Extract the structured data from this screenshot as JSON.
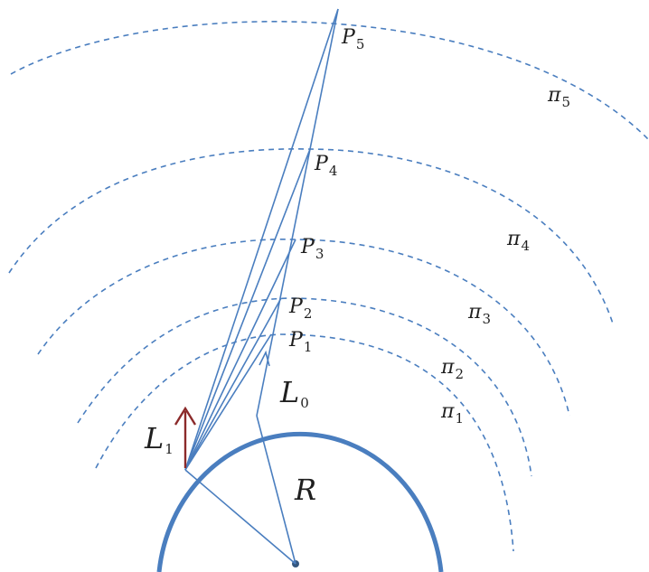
{
  "colors": {
    "line": "#4a7ebf",
    "arrow": "#8b2a2a",
    "text": "#1f1f1f"
  },
  "labels": {
    "R": "R",
    "L0": {
      "base": "L",
      "sub": "0"
    },
    "L1": {
      "base": "L",
      "sub": "1"
    },
    "points": [
      {
        "base": "P",
        "sub": "1"
      },
      {
        "base": "P",
        "sub": "2"
      },
      {
        "base": "P",
        "sub": "3"
      },
      {
        "base": "P",
        "sub": "4"
      },
      {
        "base": "P",
        "sub": "5"
      }
    ],
    "planes": [
      {
        "base": "π",
        "sub": "1"
      },
      {
        "base": "π",
        "sub": "2"
      },
      {
        "base": "π",
        "sub": "3"
      },
      {
        "base": "π",
        "sub": "4"
      },
      {
        "base": "π",
        "sub": "5"
      }
    ]
  }
}
